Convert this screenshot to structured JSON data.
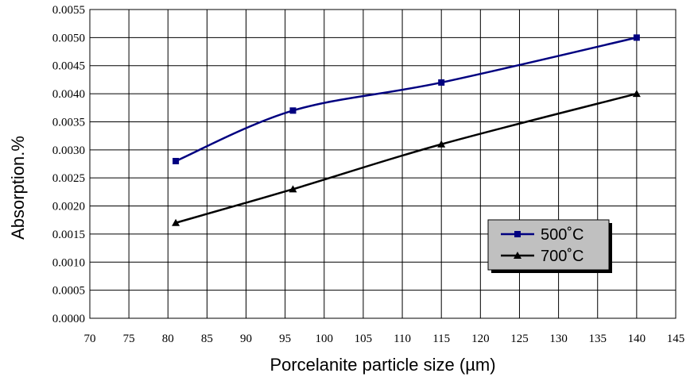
{
  "chart_data": {
    "type": "line",
    "xlabel": "Porcelanite particle size (µm)",
    "ylabel": "Absorption.%",
    "xlim": [
      70,
      145
    ],
    "ylim": [
      0,
      0.0055
    ],
    "x_ticks": [
      "70",
      "75",
      "80",
      "85",
      "90",
      "95",
      "100",
      "105",
      "110",
      "115",
      "120",
      "125",
      "130",
      "135",
      "140",
      "145"
    ],
    "x_tick_values": [
      70,
      75,
      80,
      85,
      90,
      95,
      100,
      105,
      110,
      115,
      120,
      125,
      130,
      135,
      140,
      145
    ],
    "y_ticks": [
      "0.0000",
      "0.0005",
      "0.0010",
      "0.0015",
      "0.0020",
      "0.0025",
      "0.0030",
      "0.0035",
      "0.0040",
      "0.0045",
      "0.0050",
      "0.0055"
    ],
    "y_tick_values": [
      0,
      0.0005,
      0.001,
      0.0015,
      0.002,
      0.0025,
      0.003,
      0.0035,
      0.004,
      0.0045,
      0.005,
      0.0055
    ],
    "grid": true,
    "legend_position": "bottom-right",
    "series": [
      {
        "name": "500˚C",
        "color": "#000080",
        "marker": "square",
        "x": [
          81,
          96,
          115,
          140
        ],
        "y": [
          0.0028,
          0.0037,
          0.0042,
          0.005
        ]
      },
      {
        "name": "700˚C",
        "color": "#000000",
        "marker": "triangle",
        "x": [
          81,
          96,
          115,
          140
        ],
        "y": [
          0.0017,
          0.0023,
          0.0031,
          0.004
        ]
      }
    ]
  }
}
